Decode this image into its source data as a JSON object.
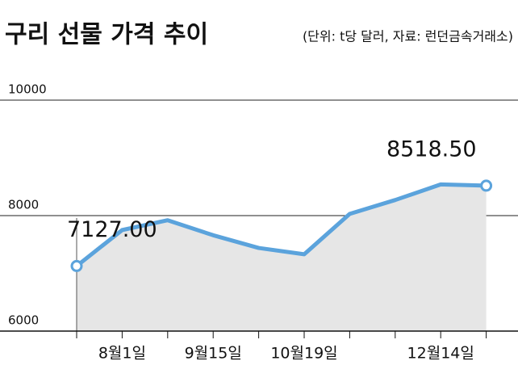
{
  "chart_data": {
    "type": "line",
    "title": "구리 선물 가격 추이",
    "subtitle": "(단위: t당 달러, 자료: 런던금속거래소)",
    "categories": [
      null,
      "8월1일",
      null,
      "9월15일",
      null,
      "10월19일",
      null,
      null,
      "12월14일",
      null
    ],
    "values": [
      7127.0,
      7750,
      7920,
      7660,
      7440,
      7330,
      8030,
      8270,
      8540,
      8518.5
    ],
    "value_labels": [
      "7127.00",
      null,
      null,
      null,
      null,
      null,
      null,
      null,
      null,
      "8518.50"
    ],
    "color": "#5ba3dc",
    "ylim": [
      6000,
      10000
    ],
    "yticks": [
      6000,
      8000,
      10000
    ],
    "grid": true
  }
}
